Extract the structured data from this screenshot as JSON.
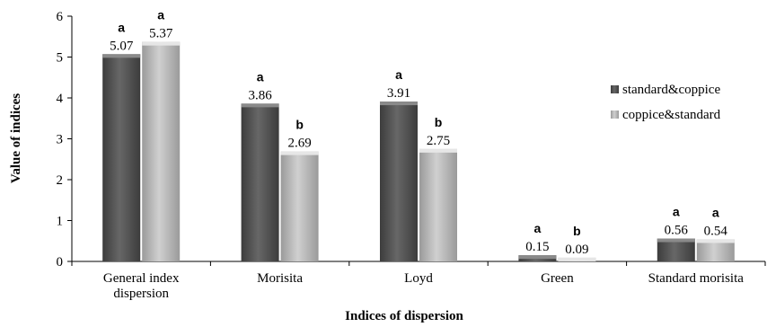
{
  "chart_data": {
    "type": "bar",
    "categories": [
      [
        "General index",
        "dispersion"
      ],
      [
        "Morisita"
      ],
      [
        "Loyd"
      ],
      [
        "Green"
      ],
      [
        "Standard morisita"
      ]
    ],
    "series": [
      {
        "name": "standard&coppice",
        "color": "#5c5c5c",
        "values": [
          5.07,
          3.86,
          3.91,
          0.15,
          0.56
        ],
        "value_labels": [
          "5.07",
          "3.86",
          "3.91",
          "0.15",
          "0.56"
        ],
        "significance": [
          "a",
          "a",
          "a",
          "a",
          "a"
        ]
      },
      {
        "name": "coppice&standard",
        "color": "#b4b4b4",
        "values": [
          5.37,
          2.69,
          2.75,
          0.09,
          0.54
        ],
        "value_labels": [
          "5.37",
          "2.69",
          "2.75",
          "0.09",
          "0.54"
        ],
        "significance": [
          "a",
          "b",
          "b",
          "b",
          "a"
        ]
      }
    ],
    "xlabel": "Indices of dispersion",
    "ylabel": "Value of indices",
    "ylim": [
      0,
      6
    ],
    "yticks": [
      "0",
      "1",
      "2",
      "3",
      "4",
      "5",
      "6"
    ],
    "grid": false,
    "legend_position": "right"
  }
}
